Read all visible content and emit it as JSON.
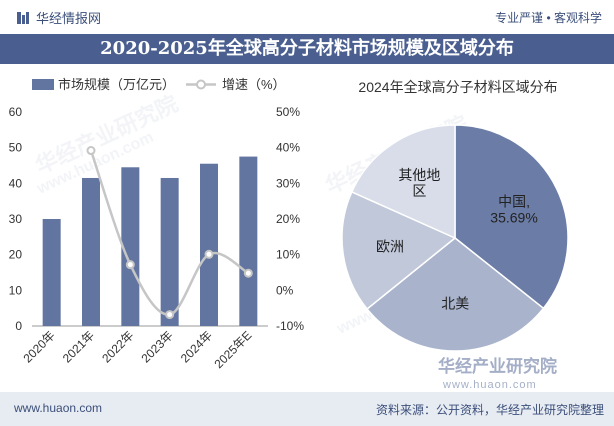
{
  "header": {
    "brand": "华经情报网",
    "slogan": "专业严谨 • 客观科学",
    "title": "2020-2025年全球高分子材料市场规模及区域分布"
  },
  "footer": {
    "url": "www.huaon.com",
    "source": "资料来源：公开资料，华经产业研究院整理"
  },
  "watermark": {
    "name": "华经产业研究院",
    "url": "www.huaon.com"
  },
  "colors": {
    "header_bar": "#4a5f8f",
    "bar": "#6275a0",
    "line": "#c6c6c6",
    "pie_china": "#6b7da6",
    "pie_na": "#a9b4cc",
    "pie_europe": "#c0c8da",
    "pie_other": "#d8dde9"
  },
  "chart_data": [
    {
      "type": "bar",
      "categories": [
        "2020年",
        "2021年",
        "2022年",
        "2023年",
        "2024年",
        "2025年E"
      ],
      "series": [
        {
          "name": "市场规模（万亿元）",
          "axis": "left",
          "values": [
            30,
            41.5,
            44.5,
            41.5,
            45.5,
            47.5
          ]
        },
        {
          "name": "增速（%）",
          "axis": "right",
          "type": "line",
          "values": [
            null,
            39.2,
            7.2,
            -6.8,
            10.1,
            4.8
          ]
        }
      ],
      "ylim_left": [
        0,
        60
      ],
      "yticks_left": [
        "0",
        "10",
        "20",
        "30",
        "40",
        "50",
        "60"
      ],
      "ylim_right": [
        -10,
        50
      ],
      "yticks_right": [
        "-10%",
        "0%",
        "10%",
        "20%",
        "30%",
        "40%",
        "50%"
      ],
      "legend": "top"
    },
    {
      "type": "pie",
      "title": "2024年全球高分子材料区域分布",
      "slices": [
        {
          "label": "中国,",
          "value": 35.69,
          "value_label": "35.69%"
        },
        {
          "label": "北美",
          "value": 28.5
        },
        {
          "label": "欧洲",
          "value": 17.5
        },
        {
          "label": "其他地区",
          "label_lines": [
            "其他地",
            "区"
          ],
          "value": 18.31
        }
      ]
    }
  ]
}
